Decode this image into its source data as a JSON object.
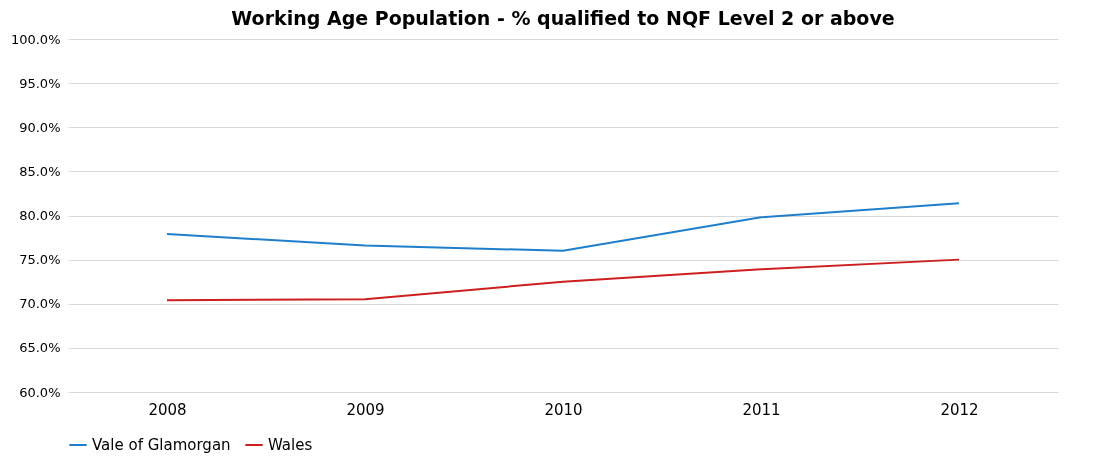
{
  "chart_data": {
    "type": "line",
    "title": "Working Age Population - % qualified to NQF Level 2 or above",
    "categories": [
      "2008",
      "2009",
      "2010",
      "2011",
      "2012"
    ],
    "series": [
      {
        "name": "Vale of Glamorgan",
        "color": "#1f7fcc",
        "values": [
          77.9,
          76.6,
          76.0,
          79.8,
          81.4
        ]
      },
      {
        "name": "Wales",
        "color": "#cc1f1f",
        "values": [
          70.4,
          70.5,
          72.5,
          73.9,
          75.0
        ]
      }
    ],
    "ylim": [
      60,
      100
    ],
    "yticks": [
      {
        "value": 60,
        "label": "60.0%"
      },
      {
        "value": 65,
        "label": "65.0%"
      },
      {
        "value": 70,
        "label": "70.0%"
      },
      {
        "value": 75,
        "label": "75.0%"
      },
      {
        "value": 80,
        "label": "80.0%"
      },
      {
        "value": 85,
        "label": "85.0%"
      },
      {
        "value": 90,
        "label": "90.0%"
      },
      {
        "value": 95,
        "label": "95.0%"
      },
      {
        "value": 100,
        "label": "100.0%"
      }
    ],
    "grid": "y",
    "legend": "bottom",
    "marker": "none"
  }
}
